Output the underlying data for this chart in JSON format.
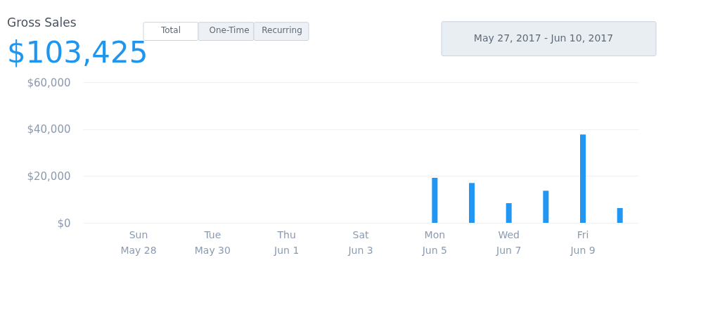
{
  "chart_data": {
    "type": "bar",
    "title": "Gross Sales",
    "subtitle": "$103,425",
    "categories": [
      null,
      "Sun May 28",
      null,
      "Tue May 30",
      null,
      "Thu Jun 1",
      null,
      "Sat Jun 3",
      null,
      "Mon Jun 5",
      null,
      "Wed Jun 7",
      null,
      "Fri Jun 9",
      null
    ],
    "values": [
      0,
      0,
      0,
      0,
      0,
      0,
      0,
      0,
      0,
      19200,
      17000,
      8400,
      13700,
      37700,
      6300
    ],
    "color": "#2196f3",
    "ylim": [
      0,
      60000
    ],
    "yticks": [
      {
        "value": 0,
        "label": "$0"
      },
      {
        "value": 20000,
        "label": "$20,000"
      },
      {
        "value": 40000,
        "label": "$40,000"
      },
      {
        "value": 60000,
        "label": "$60,000"
      }
    ],
    "grid": "y",
    "annotations": [
      "Total",
      "One-Time",
      "Recurring",
      "May 27, 2017  -  Jun 10, 2017"
    ]
  }
}
